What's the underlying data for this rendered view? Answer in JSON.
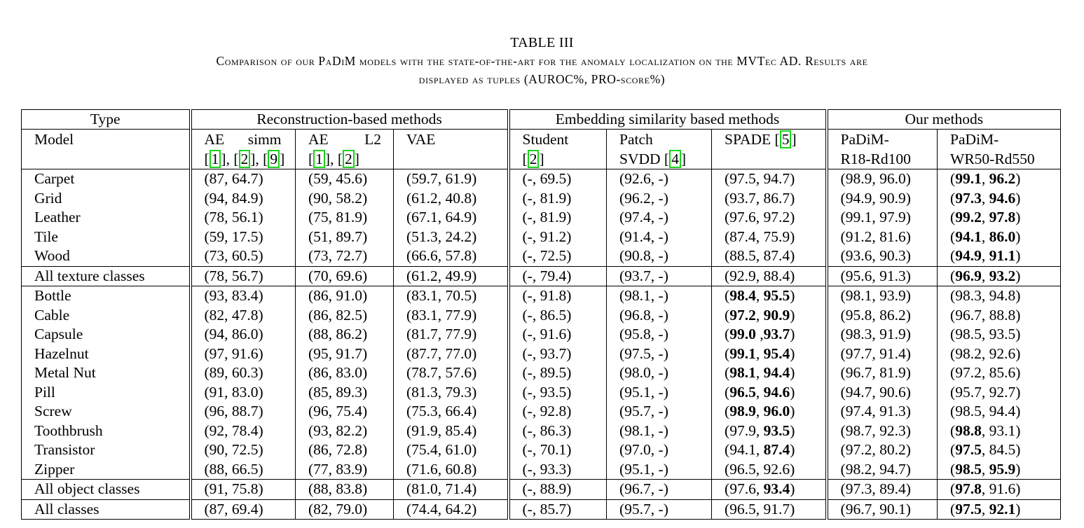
{
  "caption": {
    "table_label": "TABLE III",
    "line1": "Comparison of our PaDiM models with the state-of-the-art for the anomaly localization on the MVTec AD. Results are",
    "line2": "displayed as tuples (AUROC%, PRO-score%)"
  },
  "header_groups": {
    "type": "Type",
    "reconstruction": "Reconstruction-based methods",
    "embedding": "Embedding similarity based methods",
    "ours": "Our methods"
  },
  "model_header": {
    "model": "Model",
    "ae_simm_a": "AE",
    "ae_simm_b": "simm",
    "ae_simm_open": "[",
    "ae_simm_c1": "1",
    "ae_simm_sep1": "], [",
    "ae_simm_c2": "2",
    "ae_simm_sep2": "], [",
    "ae_simm_c3": "9",
    "ae_simm_close": "]",
    "ae_l2_a": "AE",
    "ae_l2_b": "L2",
    "ae_l2_open": "[",
    "ae_l2_c1": "1",
    "ae_l2_sep1": "], [",
    "ae_l2_c2": "2",
    "ae_l2_close": "]",
    "vae": "VAE",
    "student": "Student",
    "student_open": "[",
    "student_c1": "2",
    "student_close": "]",
    "patch_a": "Patch",
    "patch_b": "SVDD [",
    "patch_c1": "4",
    "patch_close": "]",
    "spade": "SPADE [",
    "spade_c1": "5",
    "spade_close": "]",
    "padim1_a": "PaDiM-",
    "padim1_b": "R18-Rd100",
    "padim2_a": "PaDiM-",
    "padim2_b": "WR50-Rd550"
  },
  "rows": [
    {
      "type": "Carpet",
      "ae_simm": "(87, 64.7)",
      "ae_l2": "(59, 45.6)",
      "vae": "(59.7, 61.9)",
      "student": "(-, 69.5)",
      "patch_svdd": "(92.6, -)",
      "spade": "(97.5, 94.7)",
      "padim_r18": "(98.9, 96.0)",
      "padim_wr50": "(99.1, 96.2)"
    },
    {
      "type": "Grid",
      "ae_simm": "(94, 84.9)",
      "ae_l2": "(90, 58.2)",
      "vae": "(61.2, 40.8)",
      "student": "(-, 81.9)",
      "patch_svdd": "(96.2, -)",
      "spade": "(93.7, 86.7)",
      "padim_r18": "(94.9, 90.9)",
      "padim_wr50": "(97.3, 94.6)"
    },
    {
      "type": "Leather",
      "ae_simm": "(78, 56.1)",
      "ae_l2": "(75, 81.9)",
      "vae": "(67.1, 64.9)",
      "student": "(-, 81.9)",
      "patch_svdd": "(97.4, -)",
      "spade": "(97.6, 97.2)",
      "padim_r18": "(99.1, 97.9)",
      "padim_wr50": "(99.2, 97.8)"
    },
    {
      "type": "Tile",
      "ae_simm": "(59, 17.5)",
      "ae_l2": "(51, 89.7)",
      "vae": "(51.3, 24.2)",
      "student": "(-, 91.2)",
      "patch_svdd": "(91.4, -)",
      "spade": "(87.4, 75.9)",
      "padim_r18": "(91.2, 81.6)",
      "padim_wr50": "(94.1, 86.0)"
    },
    {
      "type": "Wood",
      "ae_simm": "(73, 60.5)",
      "ae_l2": "(73, 72.7)",
      "vae": "(66.6, 57.8)",
      "student": "(-, 72.5)",
      "patch_svdd": "(90.8, -)",
      "spade": "(88.5, 87.4)",
      "padim_r18": "(93.6, 90.3)",
      "padim_wr50": "(94.9, 91.1)"
    },
    {
      "type": "All texture classes",
      "ae_simm": "(78, 56.7)",
      "ae_l2": "(70, 69.6)",
      "vae": "(61.2, 49.9)",
      "student": "(-, 79.4)",
      "patch_svdd": "(93.7, -)",
      "spade": "(92.9, 88.4)",
      "padim_r18": "(95.6, 91.3)",
      "padim_wr50": "(96.9, 93.2)"
    },
    {
      "type": "Bottle",
      "ae_simm": "(93, 83.4)",
      "ae_l2": "(86, 91.0)",
      "vae": "(83.1, 70.5)",
      "student": "(-, 91.8)",
      "patch_svdd": "(98.1, -)",
      "spade": "(98.4, 95.5)",
      "padim_r18": "(98.1, 93.9)",
      "padim_wr50": "(98.3, 94.8)"
    },
    {
      "type": "Cable",
      "ae_simm": "(82, 47.8)",
      "ae_l2": "(86, 82.5)",
      "vae": "(83.1, 77.9)",
      "student": "(-, 86.5)",
      "patch_svdd": "(96.8, -)",
      "spade": "(97.2, 90.9)",
      "padim_r18": "(95.8, 86.2)",
      "padim_wr50": "(96.7, 88.8)"
    },
    {
      "type": "Capsule",
      "ae_simm": "(94, 86.0)",
      "ae_l2": "(88, 86.2)",
      "vae": "(81.7, 77.9)",
      "student": "(-, 91.6)",
      "patch_svdd": "(95.8, -)",
      "spade": "(99.0 ,93.7)",
      "padim_r18": "(98.3, 91.9)",
      "padim_wr50": "(98.5, 93.5)"
    },
    {
      "type": "Hazelnut",
      "ae_simm": "(97, 91.6)",
      "ae_l2": "(95, 91.7)",
      "vae": "(87.7, 77.0)",
      "student": "(-, 93.7)",
      "patch_svdd": "(97.5, -)",
      "spade": "(99.1, 95.4)",
      "padim_r18": "(97.7, 91.4)",
      "padim_wr50": "(98.2, 92.6)"
    },
    {
      "type": "Metal Nut",
      "ae_simm": "(89, 60.3)",
      "ae_l2": "(86, 83.0)",
      "vae": "(78.7, 57.6)",
      "student": "(-, 89.5)",
      "patch_svdd": "(98.0, -)",
      "spade": "(98.1, 94.4)",
      "padim_r18": "(96.7, 81.9)",
      "padim_wr50": "(97.2, 85.6)"
    },
    {
      "type": "Pill",
      "ae_simm": "(91, 83.0)",
      "ae_l2": "(85, 89.3)",
      "vae": "(81.3, 79.3)",
      "student": "(-, 93.5)",
      "patch_svdd": "(95.1, -)",
      "spade": "(96.5, 94.6)",
      "padim_r18": "(94.7, 90.6)",
      "padim_wr50": "(95.7, 92.7)"
    },
    {
      "type": "Screw",
      "ae_simm": "(96, 88.7)",
      "ae_l2": "(96, 75.4)",
      "vae": "(75.3, 66.4)",
      "student": "(-, 92.8)",
      "patch_svdd": "(95.7, -)",
      "spade": "(98.9, 96.0)",
      "padim_r18": "(97.4, 91.3)",
      "padim_wr50": "(98.5, 94.4)"
    },
    {
      "type": "Toothbrush",
      "ae_simm": "(92, 78.4)",
      "ae_l2": "(93, 82.2)",
      "vae": "(91.9, 85.4)",
      "student": "(-, 86.3)",
      "patch_svdd": "(98.1, -)",
      "spade": "(97.9, 93.5)",
      "padim_r18": "(98.7, 92.3)",
      "padim_wr50": "(98.8, 93.1)"
    },
    {
      "type": "Transistor",
      "ae_simm": "(90, 72.5)",
      "ae_l2": "(86, 72.8)",
      "vae": "(75.4, 61.0)",
      "student": "(-, 70.1)",
      "patch_svdd": "(97.0, -)",
      "spade": "(94.1, 87.4)",
      "padim_r18": "(97.2, 80.2)",
      "padim_wr50": "(97.5, 84.5)"
    },
    {
      "type": "Zipper",
      "ae_simm": "(88, 66.5)",
      "ae_l2": "(77, 83.9)",
      "vae": "(71.6, 60.8)",
      "student": "(-, 93.3)",
      "patch_svdd": "(95.1, -)",
      "spade": "(96.5, 92.6)",
      "padim_r18": "(98.2, 94.7)",
      "padim_wr50": "(98.5, 95.9)"
    },
    {
      "type": "All object classes",
      "ae_simm": "(91, 75.8)",
      "ae_l2": "(88, 83.8)",
      "vae": "(81.0, 71.4)",
      "student": "(-, 88.9)",
      "patch_svdd": "(96.7, -)",
      "spade": "(97.6, 93.4)",
      "padim_r18": "(97.3, 89.4)",
      "padim_wr50": "(97.8, 91.6)"
    },
    {
      "type": "All classes",
      "ae_simm": "(87, 69.4)",
      "ae_l2": "(82, 79.0)",
      "vae": "(74.4, 64.2)",
      "student": "(-, 85.7)",
      "patch_svdd": "(95.7, -)",
      "spade": "(96.5, 91.7)",
      "padim_r18": "(96.7, 90.1)",
      "padim_wr50": "(97.5, 92.1)"
    }
  ]
}
